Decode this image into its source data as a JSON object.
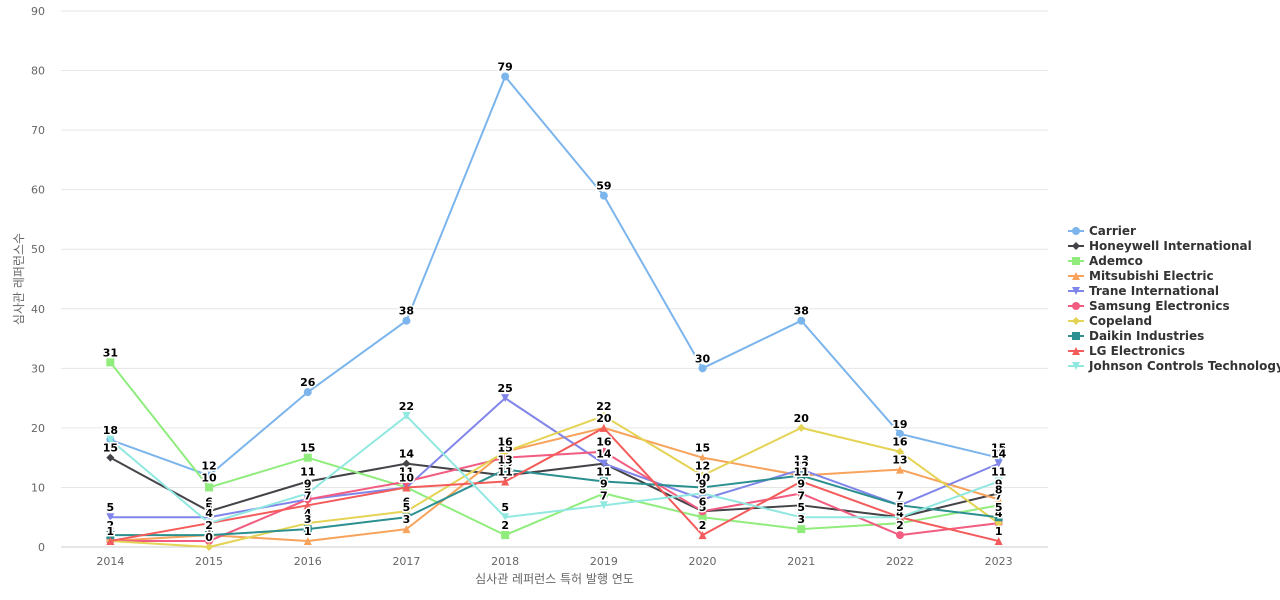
{
  "chart_data": {
    "type": "line",
    "title": "",
    "xlabel": "심사관 레퍼런스 특허 발행 연도",
    "ylabel": "심사관 레퍼런스수",
    "x": [
      "2014",
      "2015",
      "2016",
      "2017",
      "2018",
      "2019",
      "2020",
      "2021",
      "2022",
      "2023"
    ],
    "ylim": [
      0,
      90
    ],
    "yticks": [
      0,
      10,
      20,
      30,
      40,
      50,
      60,
      70,
      80,
      90
    ],
    "grid": true,
    "legend_position": "right",
    "series": [
      {
        "name": "Carrier",
        "color": "#7cb5ec",
        "marker": "circle",
        "values": [
          18,
          12,
          26,
          38,
          79,
          59,
          30,
          38,
          19,
          15
        ]
      },
      {
        "name": "Honeywell International",
        "color": "#434348",
        "marker": "diamond",
        "values": [
          15,
          6,
          11,
          14,
          12,
          14,
          6,
          7,
          5,
          9
        ]
      },
      {
        "name": "Ademco",
        "color": "#90ed7d",
        "marker": "square",
        "values": [
          31,
          10,
          15,
          10,
          2,
          9,
          5,
          3,
          4,
          7
        ]
      },
      {
        "name": "Mitsubishi Electric",
        "color": "#f7a35c",
        "marker": "triangle",
        "values": [
          1,
          2,
          1,
          3,
          16,
          20,
          15,
          12,
          13,
          8
        ]
      },
      {
        "name": "Trane International",
        "color": "#8085e9",
        "marker": "triangle-down",
        "values": [
          5,
          5,
          8,
          10,
          25,
          14,
          8,
          13,
          7,
          14
        ]
      },
      {
        "name": "Samsung Electronics",
        "color": "#f15c80",
        "marker": "circle",
        "values": [
          1,
          1,
          8,
          11,
          15,
          16,
          6,
          9,
          2,
          4
        ]
      },
      {
        "name": "Copeland",
        "color": "#e4d354",
        "marker": "diamond",
        "values": [
          1,
          0,
          4,
          6,
          16,
          22,
          12,
          20,
          16,
          4
        ]
      },
      {
        "name": "Daikin Industries",
        "color": "#2b908f",
        "marker": "square",
        "values": [
          2,
          2,
          3,
          5,
          13,
          11,
          10,
          12,
          7,
          5
        ]
      },
      {
        "name": "LG Electronics",
        "color": "#f45b5b",
        "marker": "triangle",
        "values": [
          1,
          4,
          7,
          10,
          11,
          20,
          2,
          11,
          5,
          1
        ]
      },
      {
        "name": "Johnson Controls Technology",
        "color": "#91e8e1",
        "marker": "triangle-down",
        "values": [
          18,
          4,
          9,
          22,
          5,
          7,
          9,
          5,
          5,
          11
        ]
      }
    ]
  }
}
